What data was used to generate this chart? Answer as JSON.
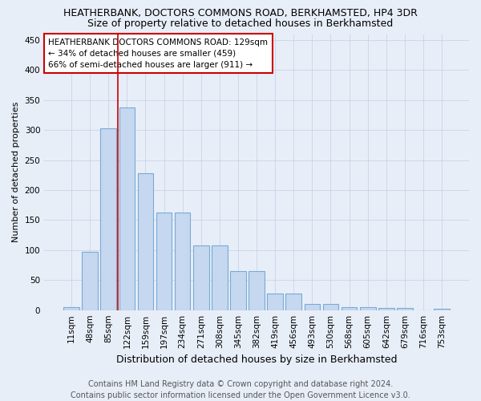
{
  "title1": "HEATHERBANK, DOCTORS COMMONS ROAD, BERKHAMSTED, HP4 3DR",
  "title2": "Size of property relative to detached houses in Berkhamsted",
  "xlabel": "Distribution of detached houses by size in Berkhamsted",
  "ylabel": "Number of detached properties",
  "categories": [
    "11sqm",
    "48sqm",
    "85sqm",
    "122sqm",
    "159sqm",
    "197sqm",
    "234sqm",
    "271sqm",
    "308sqm",
    "345sqm",
    "382sqm",
    "419sqm",
    "456sqm",
    "493sqm",
    "530sqm",
    "568sqm",
    "605sqm",
    "642sqm",
    "679sqm",
    "716sqm",
    "753sqm"
  ],
  "bar_values": [
    5,
    97,
    303,
    338,
    228,
    163,
    163,
    108,
    108,
    65,
    65,
    27,
    27,
    10,
    10,
    5,
    5,
    3,
    3,
    0,
    2
  ],
  "bar_color": "#c5d8f0",
  "bar_edge_color": "#7aaad4",
  "annotation_box_text": "HEATHERBANK DOCTORS COMMONS ROAD: 129sqm\n← 34% of detached houses are smaller (459)\n66% of semi-detached houses are larger (911) →",
  "annotation_box_color": "#ffffff",
  "annotation_box_edge_color": "#cc0000",
  "vline_color": "#cc0000",
  "vline_x_index": 3,
  "grid_color": "#c8d4e8",
  "footer1": "Contains HM Land Registry data © Crown copyright and database right 2024.",
  "footer2": "Contains public sector information licensed under the Open Government Licence v3.0.",
  "ylim": [
    0,
    460
  ],
  "yticks": [
    0,
    50,
    100,
    150,
    200,
    250,
    300,
    350,
    400,
    450
  ],
  "background_color": "#e8eef8",
  "bar_width": 0.85,
  "title1_fontsize": 9,
  "title2_fontsize": 9,
  "annotation_fontsize": 7.5,
  "ylabel_fontsize": 8,
  "xlabel_fontsize": 9,
  "footer_fontsize": 7.0,
  "tick_fontsize": 7.5
}
